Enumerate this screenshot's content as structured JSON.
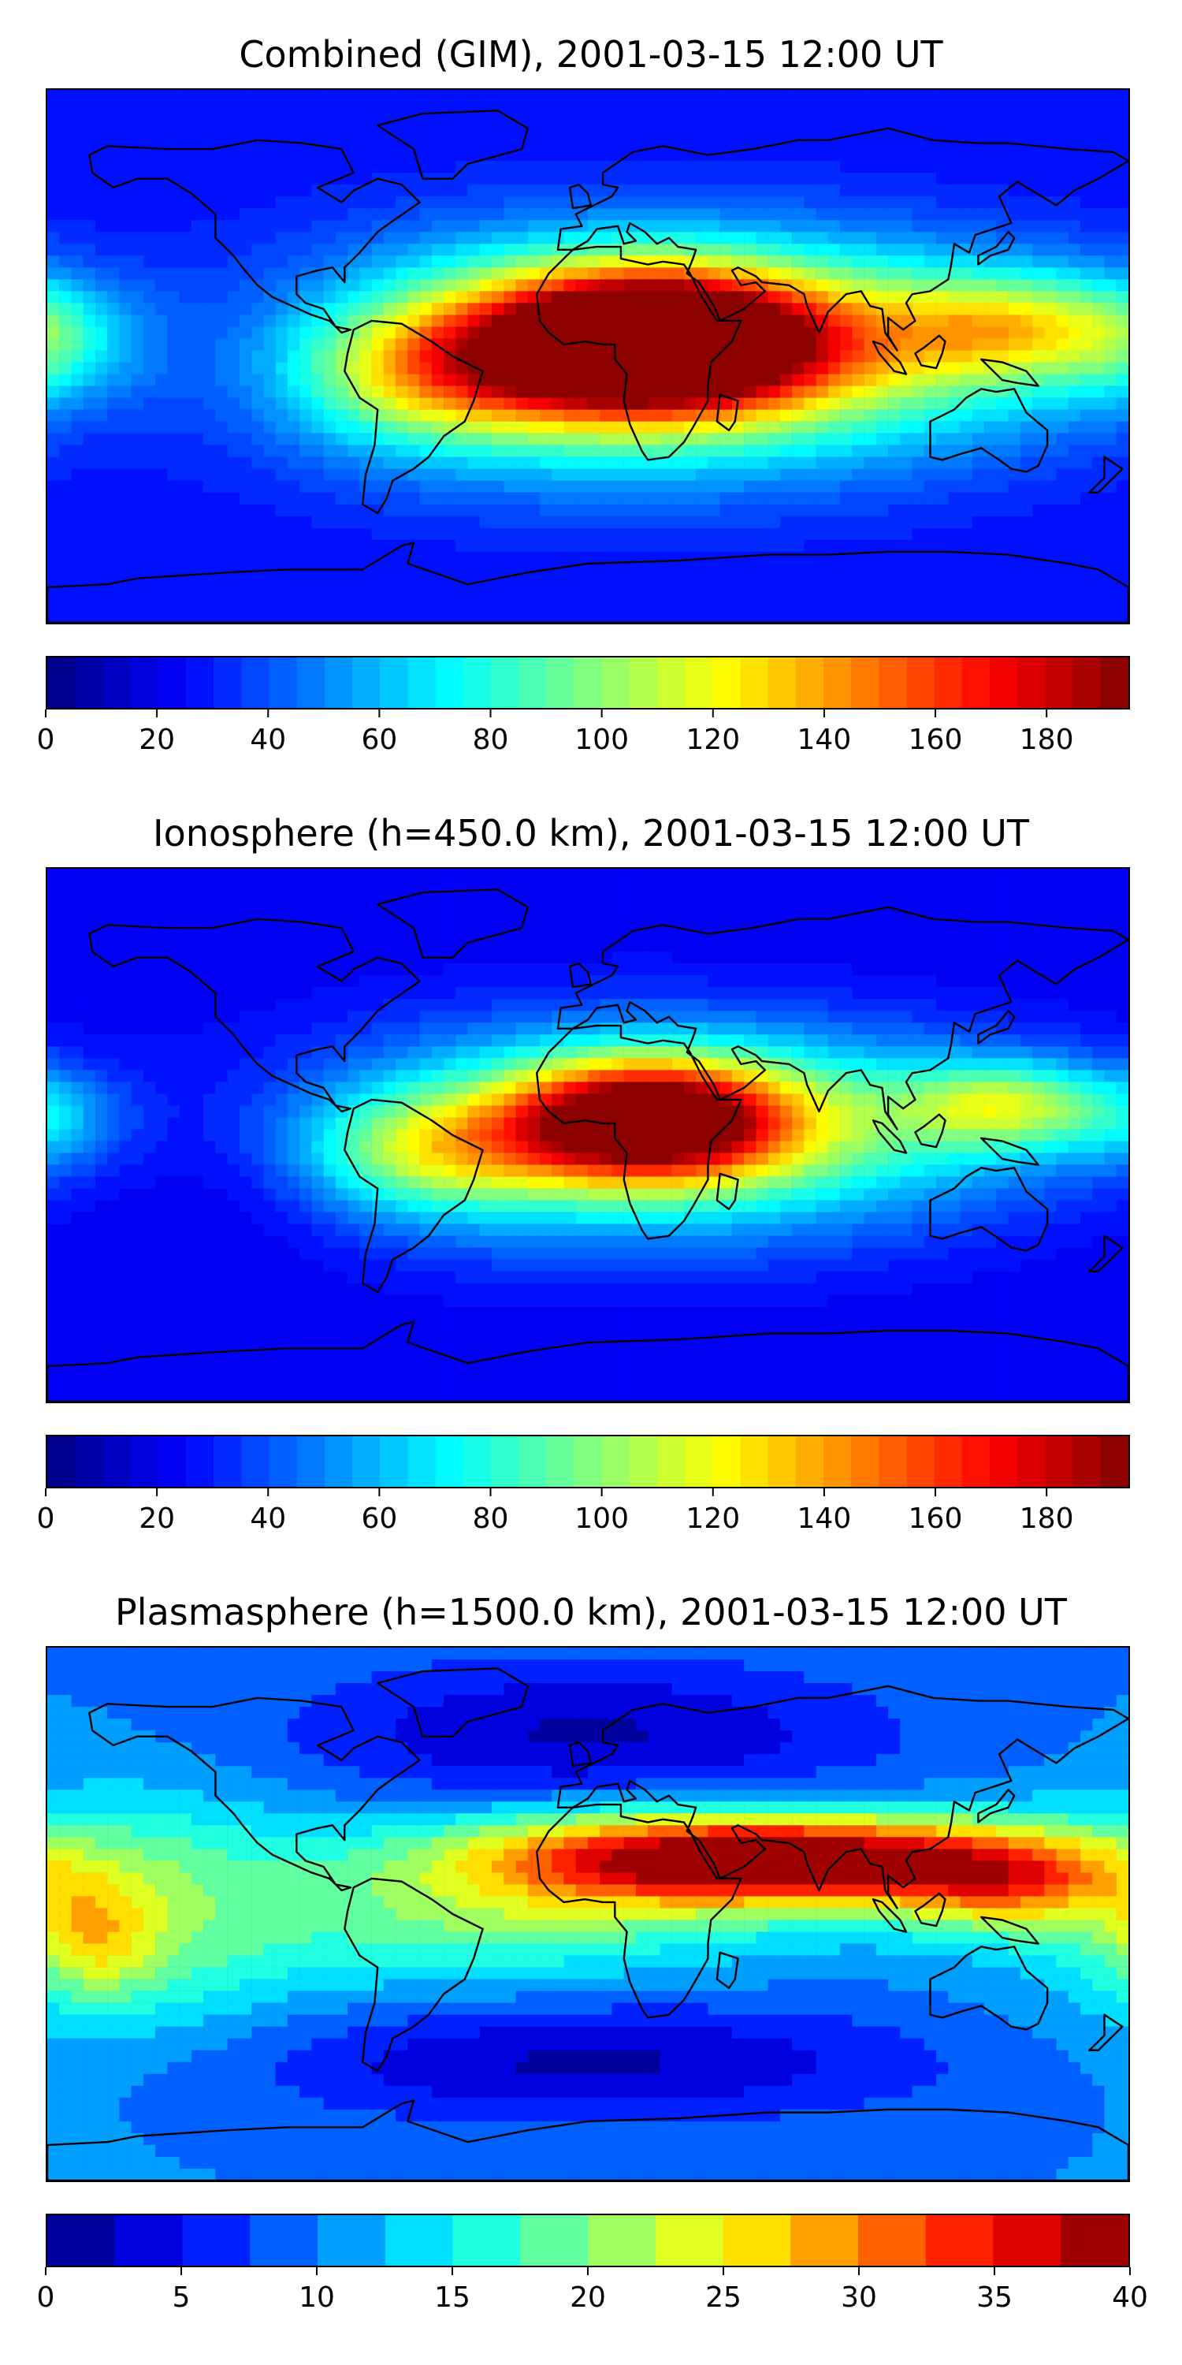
{
  "chart_data": [
    {
      "type": "heatmap",
      "title": "Combined (GIM), 2001-03-15 12:00 UT",
      "colorbar": {
        "min": 0,
        "max": 195,
        "step": 5,
        "ticks": [
          0,
          20,
          40,
          60,
          80,
          100,
          120,
          140,
          160,
          180
        ]
      },
      "background_level": 25,
      "features": [
        {
          "lon": 20,
          "lat": 5,
          "peak": 185,
          "rlon": 38,
          "rlat": 16
        },
        {
          "lon": 15,
          "lat": 0,
          "peak": 85,
          "rlon": 85,
          "rlat": 28
        },
        {
          "lon": -52,
          "lat": -5,
          "peak": 55,
          "rlon": 34,
          "rlat": 16
        },
        {
          "lon": 140,
          "lat": 10,
          "peak": 55,
          "rlon": 28,
          "rlat": 12
        },
        {
          "lon": 100,
          "lat": 5,
          "peak": 35,
          "rlon": 70,
          "rlat": 20
        },
        {
          "lon": -178,
          "lat": 5,
          "peak": 30,
          "rlon": 18,
          "rlat": 14
        },
        {
          "lon": -110,
          "lat": 0,
          "peak": -15,
          "rlon": 30,
          "rlat": 22
        }
      ]
    },
    {
      "type": "heatmap",
      "title": "Ionosphere  (h=450.0 km), 2001-03-15 12:00 UT",
      "colorbar": {
        "min": 0,
        "max": 195,
        "step": 5,
        "ticks": [
          0,
          20,
          40,
          60,
          80,
          100,
          120,
          140,
          160,
          180
        ]
      },
      "background_level": 20,
      "features": [
        {
          "lon": 20,
          "lat": 5,
          "peak": 150,
          "rlon": 32,
          "rlat": 14
        },
        {
          "lon": 15,
          "lat": 0,
          "peak": 70,
          "rlon": 80,
          "rlat": 26
        },
        {
          "lon": -52,
          "lat": -5,
          "peak": 55,
          "rlon": 30,
          "rlat": 14
        },
        {
          "lon": 140,
          "lat": 10,
          "peak": 60,
          "rlon": 24,
          "rlat": 10
        },
        {
          "lon": 100,
          "lat": 5,
          "peak": 25,
          "rlon": 60,
          "rlat": 18
        },
        {
          "lon": -178,
          "lat": 5,
          "peak": 25,
          "rlon": 16,
          "rlat": 12
        },
        {
          "lon": -110,
          "lat": -10,
          "peak": -12,
          "rlon": 30,
          "rlat": 22
        }
      ]
    },
    {
      "type": "heatmap",
      "title": "Plasmasphere (h=1500.0 km), 2001-03-15 12:00 UT",
      "colorbar": {
        "min": 0,
        "max": 40,
        "step": 2.5,
        "ticks": [
          0,
          5,
          10,
          15,
          20,
          25,
          30,
          35,
          40
        ]
      },
      "background_level": 10,
      "features": [
        {
          "lon": 55,
          "lat": 20,
          "peak": 23,
          "rlon": 60,
          "rlat": 10
        },
        {
          "lon": 85,
          "lat": 15,
          "peak": 10,
          "rlon": 50,
          "rlat": 10
        },
        {
          "lon": 140,
          "lat": 10,
          "peak": 14,
          "rlon": 28,
          "rlat": 12
        },
        {
          "lon": 0,
          "lat": 10,
          "peak": 10,
          "rlon": 60,
          "rlat": 18
        },
        {
          "lon": -150,
          "lat": 0,
          "peak": 10,
          "rlon": 40,
          "rlat": 28
        },
        {
          "lon": -50,
          "lat": -5,
          "peak": 4,
          "rlon": 40,
          "rlat": 16
        },
        {
          "lon": -165,
          "lat": -8,
          "peak": 8,
          "rlon": 14,
          "rlat": 14
        },
        {
          "lon": 0,
          "lat": 60,
          "peak": -8,
          "rlon": 70,
          "rlat": 18
        },
        {
          "lon": 0,
          "lat": -50,
          "peak": -8,
          "rlon": 80,
          "rlat": 14
        }
      ]
    }
  ]
}
